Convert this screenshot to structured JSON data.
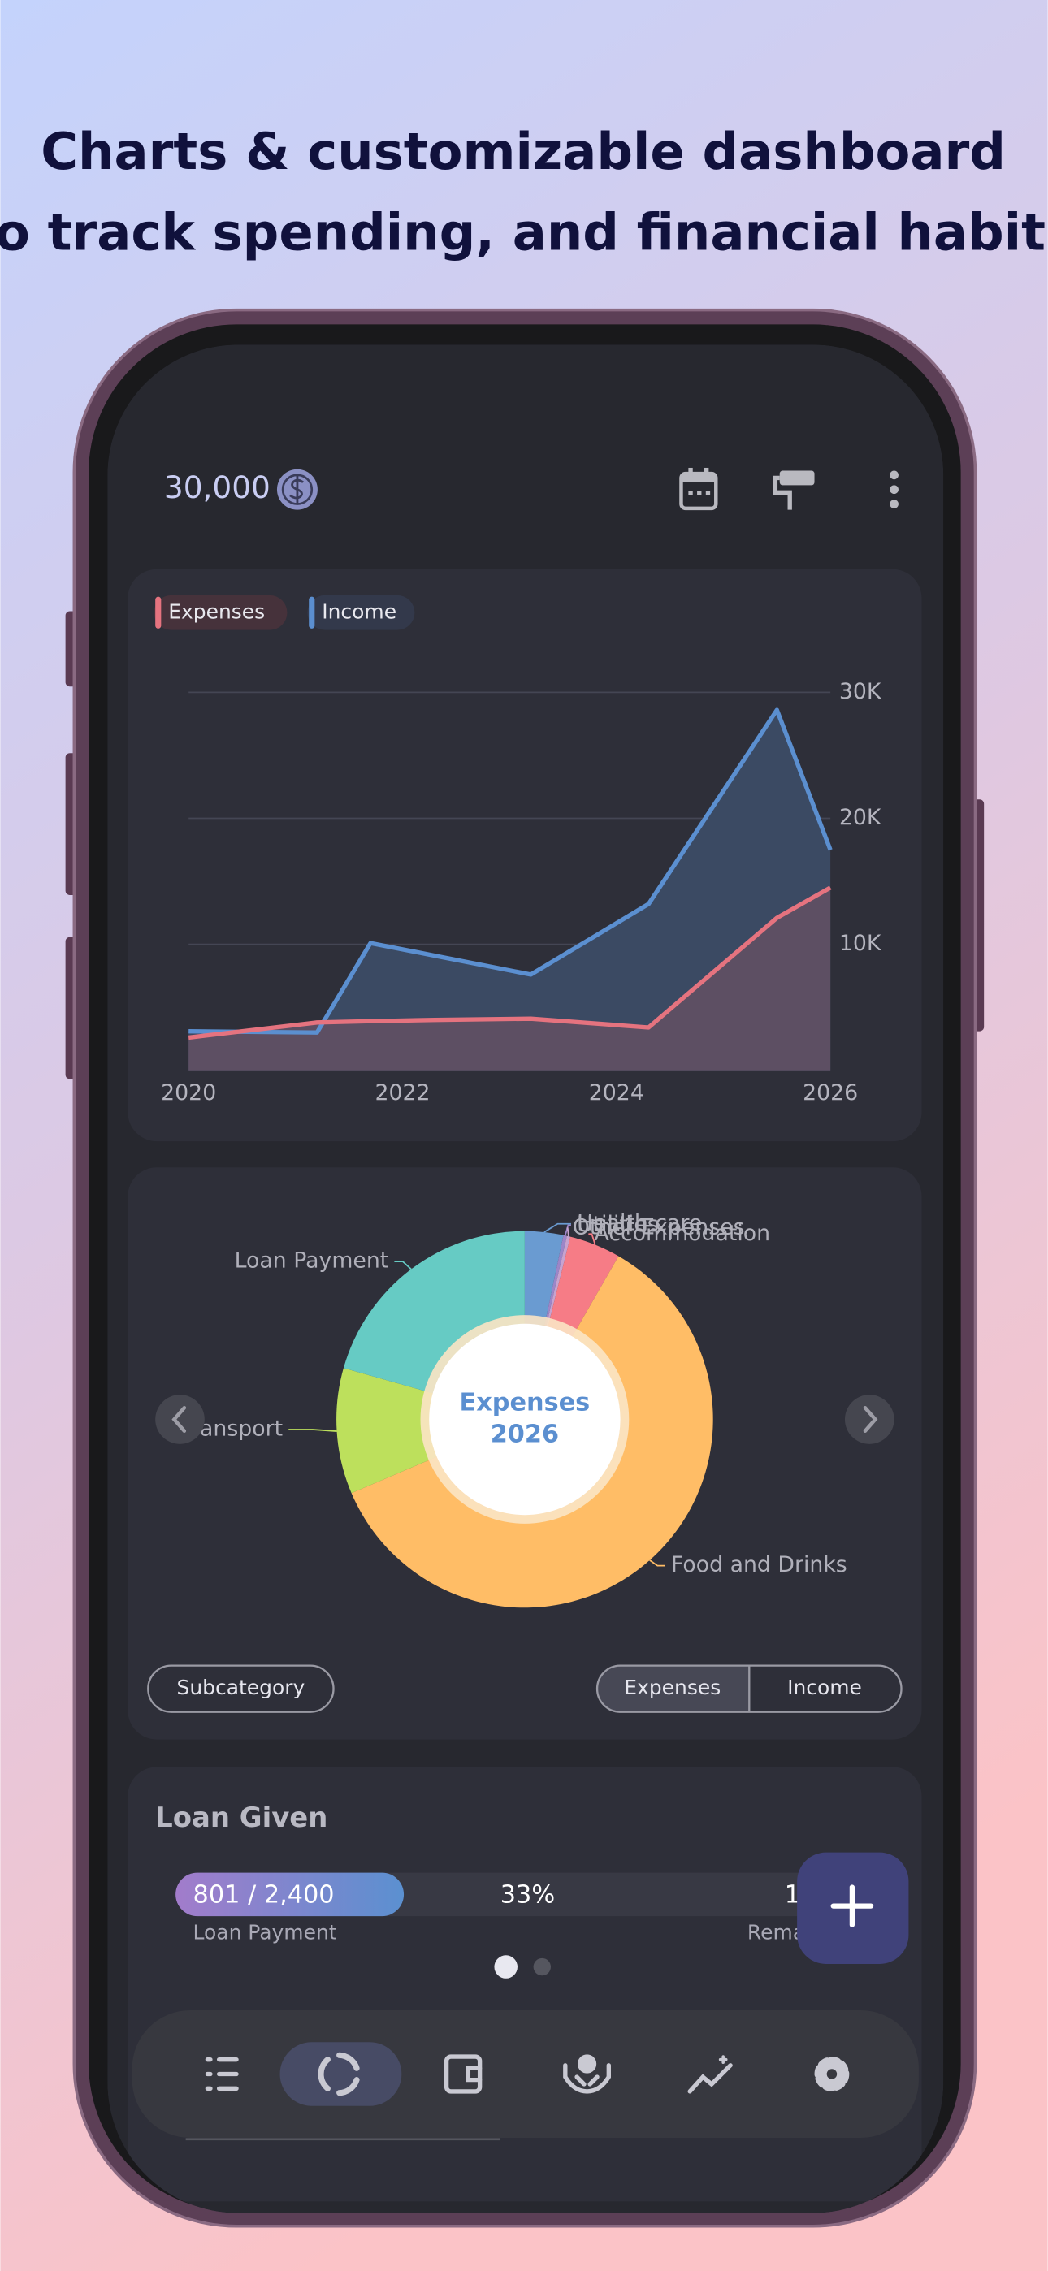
{
  "header": {
    "title_lines": [
      "Charts & customizable dashboard",
      "to track spending, and financial habits"
    ]
  },
  "balance": "30,000",
  "chart_data": [
    {
      "type": "area",
      "x": [
        2020,
        2021.2,
        2021.7,
        2022.3,
        2023.2,
        2024.3,
        2025.5,
        2026
      ],
      "series": [
        {
          "name": "Income",
          "color": "#5b8fd0",
          "values": [
            3100,
            3000,
            10100,
            9100,
            7600,
            13200,
            28600,
            17500
          ]
        },
        {
          "name": "Expenses",
          "color": "#e5737f",
          "values": [
            2600,
            3800,
            3900,
            4000,
            4100,
            3400,
            12100,
            14500
          ]
        }
      ],
      "xlim": [
        2020,
        2026
      ],
      "xticks": [
        2020,
        2022,
        2024,
        2026
      ],
      "ylim": [
        0,
        30000
      ],
      "yticks": [
        {
          "value": 10000,
          "label": "10K"
        },
        {
          "value": 20000,
          "label": "20K"
        },
        {
          "value": 30000,
          "label": "30K"
        }
      ],
      "grid": true,
      "legend": "top-left"
    },
    {
      "type": "pie",
      "center_text": [
        "Expenses",
        "2026"
      ],
      "categories": [
        "Health care",
        "Utilities",
        "Other Expenses",
        "Accommodation",
        "Food and Drinks",
        "Transport",
        "Loan Payment"
      ],
      "values": [
        3.3,
        0.3,
        0.3,
        4.4,
        60.3,
        10.8,
        20.6
      ],
      "colors": [
        "#6a9bd1",
        "#9c86c8",
        "#c7a3cf",
        "#f67c86",
        "#ffbd66",
        "#bde05c",
        "#66cbc4"
      ]
    }
  ],
  "controls": {
    "subcategory": "Subcategory",
    "tabs": [
      "Expenses",
      "Income"
    ]
  },
  "loan_card": {
    "title": "Loan Given",
    "paid": 801,
    "total": 2400,
    "progress_label": "801 / 2,400",
    "percent_label": "33%",
    "remaining_amount": "1,599",
    "left_caption": "Loan Payment",
    "right_caption": "Remaining"
  }
}
